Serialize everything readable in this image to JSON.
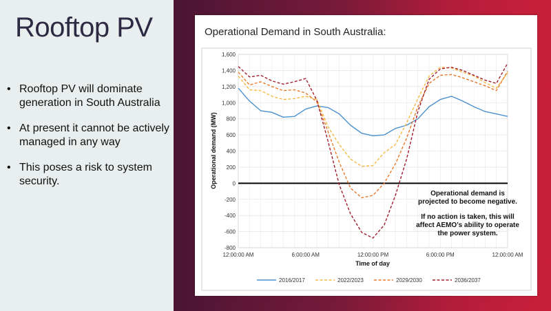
{
  "slide": {
    "title": "Rooftop PV",
    "bullets": [
      "Rooftop PV will dominate generation in South Australia",
      "At present it cannot be actively managed in any way",
      "This poses a risk to system security."
    ]
  },
  "chart_card": {
    "title": "Operational Demand in South Australia:"
  },
  "chart_data": {
    "type": "line",
    "title": "",
    "xlabel": "Time of day",
    "ylabel": "Operational demand (MW)",
    "ylim": [
      -800,
      1600
    ],
    "yticks": [
      -800,
      -600,
      -400,
      -200,
      0,
      200,
      400,
      600,
      800,
      1000,
      1200,
      1400,
      1600
    ],
    "ytick_labels": [
      "-800",
      "-600",
      "-400",
      "-200",
      "0",
      "200",
      "400",
      "600",
      "800",
      "1,000",
      "1,200",
      "1,400",
      "1,600"
    ],
    "xlim": [
      0,
      24
    ],
    "xticks": [
      0,
      6,
      12,
      18,
      24
    ],
    "xtick_labels": [
      "12:00:00 AM",
      "6:00:00 AM",
      "12:00:00 PM",
      "6:00:00 PM",
      "12:00:00 AM"
    ],
    "x": [
      0,
      1,
      2,
      3,
      4,
      5,
      6,
      7,
      8,
      9,
      10,
      11,
      12,
      13,
      14,
      15,
      16,
      17,
      18,
      19,
      20,
      21,
      22,
      23,
      24
    ],
    "grid": true,
    "legend_position": "bottom",
    "zero_line": true,
    "series": [
      {
        "name": "2016/2017",
        "color": "#4a8fcf",
        "dash": "solid",
        "values": [
          1180,
          1020,
          900,
          880,
          820,
          830,
          920,
          960,
          940,
          860,
          720,
          620,
          590,
          600,
          680,
          720,
          800,
          950,
          1040,
          1080,
          1020,
          950,
          890,
          860,
          830
        ]
      },
      {
        "name": "2022/2023",
        "color": "#f4b942",
        "dash": "dashed",
        "values": [
          1330,
          1160,
          1150,
          1080,
          1040,
          1050,
          1080,
          1040,
          700,
          480,
          300,
          210,
          220,
          380,
          480,
          750,
          1050,
          1330,
          1440,
          1430,
          1380,
          1330,
          1250,
          1180,
          1370
        ]
      },
      {
        "name": "2029/2030",
        "color": "#e8782a",
        "dash": "dashed",
        "values": [
          1380,
          1220,
          1260,
          1200,
          1150,
          1160,
          1120,
          1010,
          640,
          260,
          -60,
          -180,
          -150,
          0,
          240,
          560,
          950,
          1240,
          1340,
          1350,
          1310,
          1260,
          1210,
          1150,
          1390
        ]
      },
      {
        "name": "2036/2037",
        "color": "#a01c2c",
        "dash": "dashed",
        "values": [
          1450,
          1320,
          1340,
          1270,
          1230,
          1260,
          1300,
          1030,
          520,
          -20,
          -380,
          -610,
          -680,
          -520,
          -150,
          300,
          890,
          1290,
          1420,
          1440,
          1400,
          1340,
          1280,
          1240,
          1490
        ]
      }
    ],
    "annotations": [
      "Operational demand is",
      "projected to become negative.",
      "If no action is taken, this will",
      "affect AEMO’s ability to operate",
      "the power system."
    ]
  }
}
